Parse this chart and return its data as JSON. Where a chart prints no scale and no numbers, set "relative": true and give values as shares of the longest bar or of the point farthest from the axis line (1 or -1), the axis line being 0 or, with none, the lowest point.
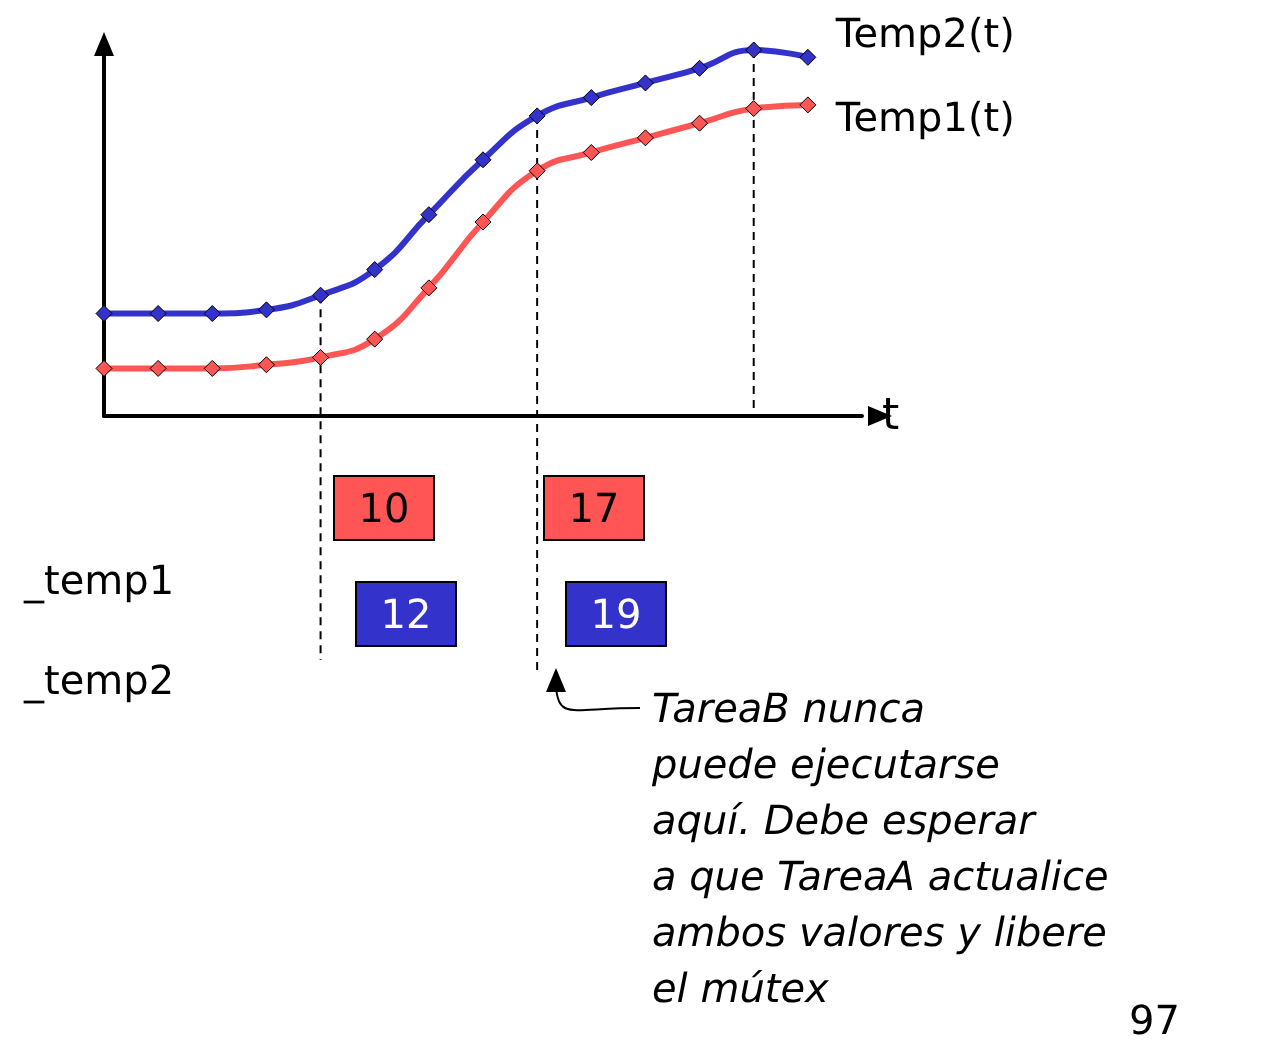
{
  "chart_data": {
    "type": "line",
    "relative": true,
    "xlabel": "t",
    "categories": [
      null,
      null,
      null,
      null,
      null,
      null,
      null,
      null,
      null,
      null,
      null,
      null,
      null,
      null,
      null
    ],
    "series": [
      {
        "name": "Temp2(t)",
        "color": "#3333cc",
        "values": [
          0.28,
          0.28,
          0.28,
          0.29,
          0.33,
          0.4,
          0.55,
          0.7,
          0.82,
          0.87,
          0.91,
          0.95,
          1.0,
          0.98,
          null
        ]
      },
      {
        "name": "Temp1(t)",
        "color": "#ff5555",
        "values": [
          0.13,
          0.13,
          0.13,
          0.14,
          0.16,
          0.21,
          0.35,
          0.53,
          0.67,
          0.72,
          0.76,
          0.8,
          0.84,
          0.85,
          null
        ]
      }
    ],
    "marker": "diamond",
    "line_style": "solid",
    "legend": false,
    "grid": "x",
    "tick_labels": false,
    "annotations": [
      "10",
      "17",
      "12",
      "19",
      "_temp1",
      "_temp2",
      "TareaB nunca\npuede ejecutarse\naquí. Debe esperar\na que TareaA actualice\nambos valores y libere\nel mútex",
      "97"
    ]
  }
}
